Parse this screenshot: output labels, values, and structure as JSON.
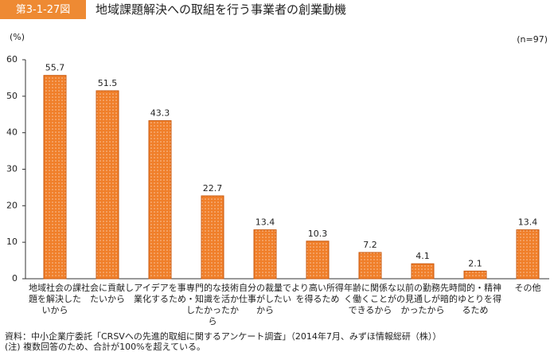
{
  "chart_data": {
    "type": "bar",
    "figure_label": "第3-1-27図",
    "title": "地域課題解決への取組を行う事業者の創業動機",
    "y_label": "(%)",
    "sample_note": "(n=97)",
    "categories": [
      "地域社会の課題を解決したいから",
      "社会に貢献したいから",
      "アイデアを事業化するため",
      "専門的な技術・知識を活かしたかったから",
      "自分の裁量で仕事がしたいから",
      "より高い所得を得るため",
      "年齢に関係なく働くことができるから",
      "以前の勤務先の見通しが暗かったから",
      "時間的・精神的ゆとりを得るため",
      "その他"
    ],
    "values": [
      55.7,
      51.5,
      43.3,
      22.7,
      13.4,
      10.3,
      7.2,
      4.1,
      2.1,
      13.4
    ],
    "color": "#f07f2a",
    "ylim": [
      0,
      60
    ],
    "yticks": [
      0,
      10,
      20,
      30,
      40,
      50,
      60
    ],
    "grid": false,
    "source": "資料：中小企業庁委託「CRSVへの先進的取組に関するアンケート調査」（2014年7月、みずほ情報総研（株））",
    "note": "(注) 複数回答のため、合計が100%を超えている。"
  }
}
